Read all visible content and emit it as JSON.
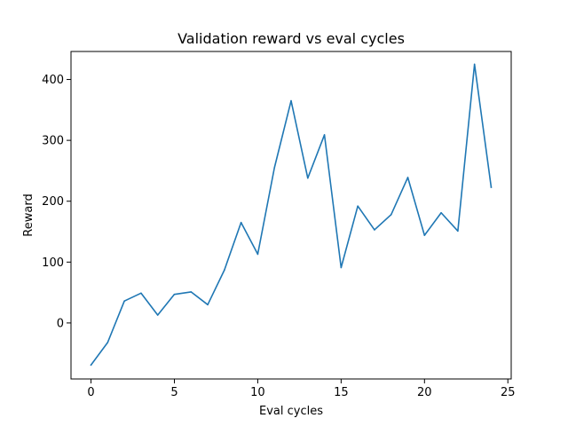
{
  "chart_data": {
    "type": "line",
    "title": "Validation reward vs eval cycles",
    "xlabel": "Eval cycles",
    "ylabel": "Reward",
    "xlim": [
      -1.2,
      25.2
    ],
    "ylim": [
      -92,
      446
    ],
    "xticks": [
      0,
      5,
      10,
      15,
      20,
      25
    ],
    "yticks": [
      0,
      100,
      200,
      300,
      400
    ],
    "grid": false,
    "series": [
      {
        "color": "#1f77b4",
        "x": [
          0,
          1,
          2,
          3,
          4,
          5,
          6,
          7,
          8,
          9,
          10,
          11,
          12,
          13,
          14,
          15,
          16,
          17,
          18,
          19,
          20,
          21,
          22,
          23,
          24
        ],
        "values": [
          -69,
          -32,
          36,
          49,
          13,
          47,
          51,
          30,
          87,
          165,
          113,
          255,
          365,
          238,
          309,
          91,
          192,
          153,
          178,
          239,
          144,
          181,
          151,
          425,
          223
        ]
      }
    ]
  }
}
